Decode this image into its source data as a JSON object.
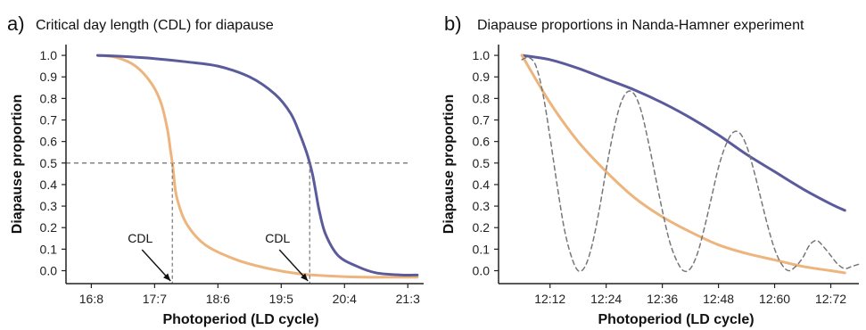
{
  "colors": {
    "orange": "#EDB57D",
    "purple": "#5B5B9C",
    "dash": "#777777",
    "axis": "#222222"
  },
  "chart_data": [
    {
      "type": "line",
      "letter": "a)",
      "title": "Critical day length (CDL) for diapause",
      "xlabel": "Photoperiod (LD cycle)",
      "ylabel": "Diapause proportion",
      "xlim": [
        16.1,
        21.75
      ],
      "ylim": [
        -0.06,
        1.05
      ],
      "xticks": [
        {
          "x": 16.5,
          "label": "16:8"
        },
        {
          "x": 17.5,
          "label": "17:7"
        },
        {
          "x": 18.5,
          "label": "18:6"
        },
        {
          "x": 19.5,
          "label": "19:5"
        },
        {
          "x": 20.5,
          "label": "20:4"
        },
        {
          "x": 21.5,
          "label": "21:3"
        }
      ],
      "yticks": [
        0.0,
        0.1,
        0.2,
        0.3,
        0.4,
        0.5,
        0.6,
        0.7,
        0.8,
        0.9,
        1.0
      ],
      "ytick_labels": [
        "0.0",
        "0.1",
        "0.2",
        "0.3",
        "0.4",
        "0.5",
        "0.6",
        "0.7",
        "0.8",
        "0.9",
        "1.0"
      ],
      "threshold": 0.5,
      "series": [
        {
          "color": "#EDB57D",
          "x": [
            16.6,
            16.9,
            17.2,
            17.45,
            17.6,
            17.7,
            17.75,
            17.78,
            17.8,
            17.85,
            18.0,
            18.3,
            18.8,
            19.3,
            19.8,
            20.3,
            20.8,
            21.3,
            21.65
          ],
          "y": [
            1.0,
            0.99,
            0.95,
            0.87,
            0.78,
            0.66,
            0.56,
            0.5,
            0.45,
            0.34,
            0.22,
            0.12,
            0.05,
            0.01,
            -0.015,
            -0.025,
            -0.03,
            -0.03,
            -0.03
          ]
        },
        {
          "color": "#5B5B9C",
          "x": [
            16.6,
            17.0,
            17.5,
            18.0,
            18.5,
            19.0,
            19.4,
            19.65,
            19.8,
            19.9,
            19.95,
            20.0,
            20.05,
            20.1,
            20.2,
            20.4,
            20.7,
            21.0,
            21.4,
            21.65
          ],
          "y": [
            1.0,
            0.995,
            0.985,
            0.97,
            0.95,
            0.9,
            0.82,
            0.73,
            0.63,
            0.55,
            0.5,
            0.44,
            0.36,
            0.28,
            0.17,
            0.07,
            0.02,
            -0.01,
            -0.02,
            -0.02
          ]
        }
      ],
      "cdl_markers": [
        {
          "label": "CDL",
          "x": 17.78
        },
        {
          "label": "CDL",
          "x": 19.95
        }
      ]
    },
    {
      "type": "line",
      "letter": "b)",
      "title": "Diapause proportions in Nanda-Hamner experiment",
      "xlabel": "Photoperiod (LD cycle)",
      "ylabel": "Diapause proportion",
      "xlim": [
        12.01,
        12.78
      ],
      "ylim": [
        -0.06,
        1.05
      ],
      "xticks": [
        {
          "x": 12.12,
          "label": "12:12"
        },
        {
          "x": 12.24,
          "label": "12:24"
        },
        {
          "x": 12.36,
          "label": "12:36"
        },
        {
          "x": 12.48,
          "label": "12:48"
        },
        {
          "x": 12.6,
          "label": "12:60"
        },
        {
          "x": 12.72,
          "label": "12:72"
        }
      ],
      "yticks": [
        0.0,
        0.1,
        0.2,
        0.3,
        0.4,
        0.5,
        0.6,
        0.7,
        0.8,
        0.9,
        1.0
      ],
      "ytick_labels": [
        "0.0",
        "0.1",
        "0.2",
        "0.3",
        "0.4",
        "0.5",
        "0.6",
        "0.7",
        "0.8",
        "0.9",
        "1.0"
      ],
      "series": [
        {
          "color": "#5B5B9C",
          "x": [
            12.06,
            12.12,
            12.18,
            12.24,
            12.3,
            12.36,
            12.42,
            12.48,
            12.54,
            12.6,
            12.66,
            12.72,
            12.75
          ],
          "y": [
            1.0,
            0.98,
            0.94,
            0.89,
            0.84,
            0.78,
            0.71,
            0.63,
            0.54,
            0.46,
            0.38,
            0.31,
            0.28
          ]
        },
        {
          "color": "#EDB57D",
          "x": [
            12.06,
            12.12,
            12.18,
            12.24,
            12.3,
            12.36,
            12.42,
            12.48,
            12.54,
            12.6,
            12.66,
            12.72,
            12.75
          ],
          "y": [
            1.0,
            0.78,
            0.6,
            0.46,
            0.34,
            0.25,
            0.18,
            0.12,
            0.08,
            0.05,
            0.02,
            0.0,
            -0.01
          ]
        },
        {
          "color": "#777777",
          "dashed": true,
          "x": [
            12.06,
            12.075,
            12.09,
            12.105,
            12.12,
            12.135,
            12.15,
            12.165,
            12.18,
            12.195,
            12.21,
            12.225,
            12.24,
            12.255,
            12.27,
            12.285,
            12.3,
            12.315,
            12.33,
            12.345,
            12.36,
            12.375,
            12.39,
            12.405,
            12.42,
            12.435,
            12.45,
            12.465,
            12.48,
            12.495,
            12.51,
            12.525,
            12.54,
            12.555,
            12.57,
            12.585,
            12.6,
            12.615,
            12.63,
            12.645,
            12.66,
            12.675,
            12.69,
            12.705,
            12.72,
            12.735,
            12.75,
            12.765,
            12.78
          ],
          "y": [
            0.98,
            0.99,
            0.95,
            0.82,
            0.62,
            0.4,
            0.2,
            0.07,
            0.0,
            0.02,
            0.12,
            0.28,
            0.47,
            0.64,
            0.77,
            0.83,
            0.82,
            0.74,
            0.6,
            0.44,
            0.28,
            0.14,
            0.05,
            0.0,
            0.01,
            0.08,
            0.2,
            0.34,
            0.48,
            0.58,
            0.64,
            0.64,
            0.58,
            0.47,
            0.34,
            0.21,
            0.1,
            0.03,
            0.0,
            0.02,
            0.06,
            0.12,
            0.14,
            0.11,
            0.07,
            0.03,
            0.01,
            0.02,
            0.03
          ]
        }
      ]
    }
  ]
}
